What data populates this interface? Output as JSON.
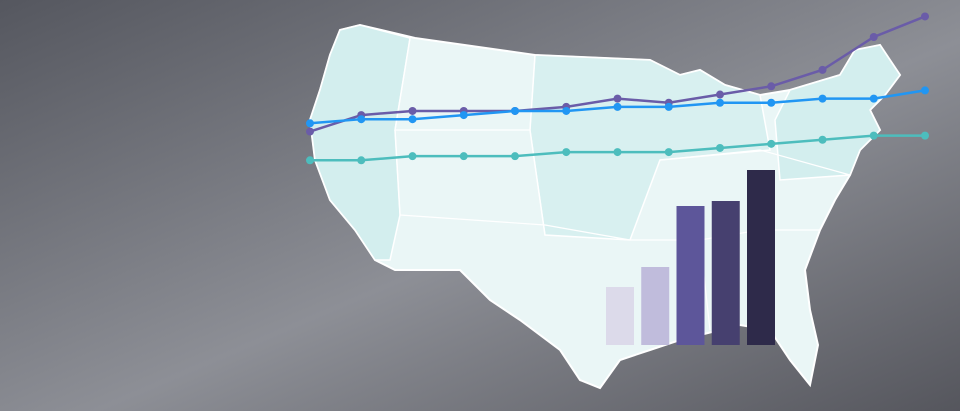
{
  "chart_data": [
    {
      "type": "line",
      "categories": [
        null,
        null,
        null,
        null,
        null,
        null,
        null,
        null,
        null,
        null,
        null,
        null,
        null
      ],
      "ylim": [
        0,
        100
      ],
      "series": [
        {
          "color": "#6a5ca8",
          "values": [
            68,
            72,
            73,
            73,
            73,
            74,
            76,
            75,
            77,
            79,
            83,
            91,
            96
          ]
        },
        {
          "color": "#2196f3",
          "values": [
            70,
            71,
            71,
            72,
            73,
            73,
            74,
            74,
            75,
            75,
            76,
            76,
            78
          ]
        },
        {
          "color": "#4dbdbd",
          "values": [
            61,
            61,
            62,
            62,
            62,
            63,
            63,
            63,
            64,
            65,
            66,
            67,
            67
          ]
        }
      ]
    },
    {
      "type": "bar",
      "categories": [
        null,
        null,
        null,
        null,
        null
      ],
      "ylim": [
        0,
        200
      ],
      "values": [
        58,
        78,
        139,
        144,
        175
      ],
      "colors": [
        "#dcdaea",
        "#c0bcdc",
        "#5d569a",
        "#46406f",
        "#2e2a4a"
      ]
    }
  ]
}
